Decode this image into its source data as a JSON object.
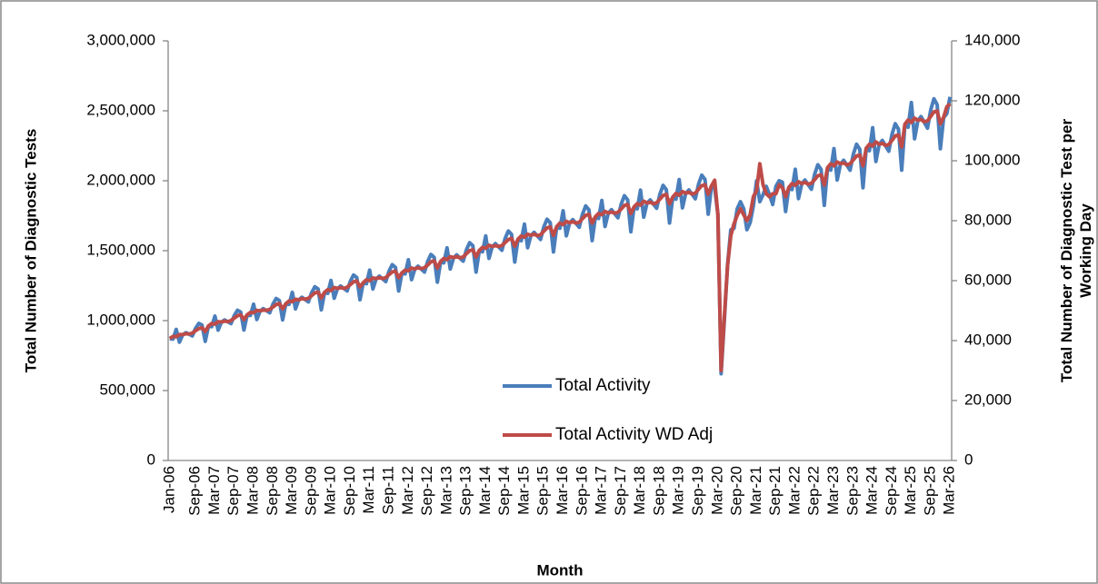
{
  "chart_data": {
    "type": "line",
    "xlabel": "Month",
    "ylabel": "Total Number of Diagnostic Tests",
    "y2label": "Total Number of Diagnostic Test per Working Day",
    "legend": "lower center",
    "ylim": [
      0,
      3000000
    ],
    "yticks": [
      0,
      {
        "value": 500000,
        "label": "500,000"
      },
      {
        "value": 1000000,
        "label": "1,000,000"
      },
      {
        "value": 1500000,
        "label": "1,500,000"
      },
      {
        "value": 2000000,
        "label": "2,000,000"
      },
      {
        "value": 2500000,
        "label": "2,500,000"
      },
      {
        "value": 3000000,
        "label": "3,000,000"
      }
    ],
    "y2lim": [
      0,
      140000
    ],
    "y2ticks": [
      0,
      {
        "value": 20000,
        "label": "20,000"
      },
      {
        "value": 40000,
        "label": "40,000"
      },
      {
        "value": 60000,
        "label": "60,000"
      },
      {
        "value": 80000,
        "label": "80,000"
      },
      {
        "value": 100000,
        "label": "100,000"
      },
      {
        "value": 120000,
        "label": "120,000"
      },
      {
        "value": 140000,
        "label": "140,000"
      }
    ],
    "categories": [
      "Jan-06",
      null,
      null,
      null,
      null,
      null,
      null,
      null,
      "Sep-06",
      null,
      null,
      null,
      null,
      null,
      "Mar-07",
      null,
      null,
      null,
      null,
      null,
      "Sep-07",
      null,
      null,
      null,
      null,
      null,
      "Mar-08",
      null,
      null,
      null,
      null,
      null,
      "Sep-08",
      null,
      null,
      null,
      null,
      null,
      "Mar-09",
      null,
      null,
      null,
      null,
      null,
      "Sep-09",
      null,
      null,
      null,
      null,
      null,
      "Mar-10",
      null,
      null,
      null,
      null,
      null,
      "Sep-10",
      null,
      null,
      null,
      null,
      null,
      "Mar-11",
      null,
      null,
      null,
      null,
      null,
      "Sep-11",
      null,
      null,
      null,
      null,
      null,
      "Mar-12",
      null,
      null,
      null,
      null,
      null,
      "Sep-12",
      null,
      null,
      null,
      null,
      null,
      "Mar-13",
      null,
      null,
      null,
      null,
      null,
      "Sep-13",
      null,
      null,
      null,
      null,
      null,
      "Mar-14",
      null,
      null,
      null,
      null,
      null,
      "Sep-14",
      null,
      null,
      null,
      null,
      null,
      "Mar-15",
      null,
      null,
      null,
      null,
      null,
      "Sep-15",
      null,
      null,
      null,
      null,
      null,
      "Mar-16",
      null,
      null,
      null,
      null,
      null,
      "Sep-16",
      null,
      null,
      null,
      null,
      null,
      "Mar-17",
      null,
      null,
      null,
      null,
      null,
      "Sep-17",
      null,
      null,
      null,
      null,
      null,
      "Mar-18",
      null,
      null,
      null,
      null,
      null,
      "Sep-18",
      null,
      null,
      null,
      null,
      null,
      "Mar-19",
      null,
      null,
      null,
      null,
      null,
      "Sep-19",
      null,
      null,
      null,
      null,
      null,
      "Mar-20",
      null,
      null,
      null,
      null,
      null,
      "Sep-20",
      null,
      null,
      null,
      null,
      null,
      "Mar-21",
      null,
      null,
      null,
      null,
      null,
      "Sep-21",
      null,
      null,
      null,
      null,
      null,
      "Mar-22",
      null,
      null,
      null,
      null,
      null,
      "Sep-22",
      null,
      null,
      null,
      null,
      null,
      "Mar-23",
      null,
      null,
      null,
      null,
      null,
      "Sep-23",
      null,
      null,
      null,
      null,
      null,
      "Mar-24",
      null,
      null,
      null,
      null,
      null,
      "Sep-24",
      null,
      null,
      null,
      null,
      null,
      "Mar-25",
      null,
      null,
      null,
      null,
      null,
      "Sep-25",
      null,
      null,
      null,
      null,
      null,
      "Mar-26"
    ],
    "series": [
      {
        "name": "Total Activity",
        "color": "#4a7ebb",
        "axis": "y",
        "values": [
          870000,
          868000,
          937000,
          846000,
          898000,
          914000,
          903000,
          891000,
          945000,
          980000,
          968000,
          852000,
          960000,
          957000,
          1032000,
          932000,
          988000,
          1005000,
          992000,
          979000,
          1036000,
          1074000,
          1061000,
          933000,
          1040000,
          1037000,
          1117000,
          1008000,
          1068000,
          1086000,
          1071000,
          1056000,
          1118000,
          1158000,
          1143000,
          1005000,
          1120000,
          1116000,
          1202000,
          1084000,
          1148000,
          1167000,
          1150000,
          1134000,
          1200000,
          1242000,
          1226000,
          1077000,
          1200000,
          1195000,
          1287000,
          1160000,
          1228000,
          1247000,
          1230000,
          1212000,
          1281000,
          1326000,
          1308000,
          1149000,
          1270000,
          1264000,
          1361000,
          1226000,
          1298000,
          1318000,
          1299000,
          1279000,
          1353000,
          1400000,
          1380000,
          1212000,
          1340000,
          1334000,
          1435000,
          1293000,
          1368000,
          1389000,
          1368000,
          1347000,
          1424000,
          1473000,
          1452000,
          1275000,
          1420000,
          1413000,
          1520000,
          1369000,
          1448000,
          1470000,
          1447000,
          1425000,
          1506000,
          1557000,
          1535000,
          1347000,
          1500000,
          1492000,
          1605000,
          1445000,
          1528000,
          1550000,
          1527000,
          1503000,
          1587000,
          1641000,
          1617000,
          1419000,
          1580000,
          1571000,
          1690000,
          1521000,
          1608000,
          1631000,
          1606000,
          1580000,
          1669000,
          1725000,
          1700000,
          1491000,
          1670000,
          1660000,
          1785000,
          1606000,
          1698000,
          1722000,
          1695000,
          1667000,
          1761000,
          1820000,
          1792000,
          1572000,
          1740000,
          1730000,
          1859000,
          1673000,
          1768000,
          1793000,
          1764000,
          1735000,
          1832000,
          1893000,
          1864000,
          1635000,
          1810000,
          1799000,
          1933000,
          1739000,
          1838000,
          1863000,
          1833000,
          1803000,
          1903000,
          1967000,
          1936000,
          1698000,
          1880000,
          1868000,
          2008000,
          1806000,
          1908000,
          1934000,
          1903000,
          1871000,
          1975000,
          2040000,
          2009000,
          1761000,
          1960000,
          1950000,
          1760000,
          620000,
          1000000,
          1400000,
          1650000,
          1660000,
          1800000,
          1850000,
          1800000,
          1650000,
          1700000,
          1820000,
          2000000,
          1850000,
          1900000,
          1960000,
          1900000,
          1830000,
          1960000,
          2000000,
          1990000,
          1780000,
          1950000,
          1937000,
          2082000,
          1872000,
          1978000,
          2005000,
          1972000,
          1939000,
          2046000,
          2114000,
          2081000,
          1824000,
          2090000,
          2076000,
          2230000,
          2005000,
          2118000,
          2146000,
          2111000,
          2075000,
          2189000,
          2261000,
          2225000,
          1950000,
          2230000,
          2215000,
          2379000,
          2138000,
          2258000,
          2288000,
          2249000,
          2211000,
          2332000,
          2408000,
          2369000,
          2076000,
          2400000,
          2383000,
          2559000,
          2300000,
          2428000,
          2459000,
          2418000,
          2376000,
          2505000,
          2586000,
          2544000,
          2229000,
          2450000,
          2480000,
          2600000
        ]
      },
      {
        "name": "Total Activity WD Adj",
        "color": "#be4b48",
        "axis": "y2",
        "values": [
          40700,
          41400,
          41300,
          42000,
          42000,
          42300,
          42200,
          42500,
          43300,
          44000,
          44300,
          43000,
          44900,
          45700,
          45500,
          46300,
          46200,
          46500,
          46300,
          46700,
          47500,
          48300,
          48600,
          47000,
          48600,
          49400,
          49300,
          50100,
          49900,
          50200,
          50100,
          50400,
          51200,
          52000,
          52400,
          50600,
          52300,
          53200,
          53000,
          53800,
          53600,
          54000,
          53800,
          54100,
          55000,
          55900,
          56200,
          54200,
          56100,
          57000,
          56700,
          57700,
          57400,
          57700,
          57400,
          57800,
          58700,
          59600,
          59900,
          57900,
          59300,
          60300,
          60000,
          60900,
          60700,
          61000,
          60700,
          61000,
          62000,
          62900,
          63200,
          61000,
          62600,
          63500,
          63300,
          64200,
          63900,
          64300,
          64000,
          64300,
          65200,
          66300,
          66600,
          64200,
          66400,
          67400,
          67000,
          68000,
          67700,
          68000,
          67600,
          67900,
          69000,
          70000,
          70300,
          67900,
          70100,
          71100,
          70800,
          71800,
          71400,
          71700,
          71400,
          71700,
          72700,
          73700,
          74100,
          71500,
          73800,
          74900,
          74500,
          75500,
          75100,
          75500,
          75000,
          75300,
          76500,
          77600,
          77900,
          75100,
          78000,
          79200,
          78700,
          79800,
          79300,
          79700,
          79200,
          79500,
          80700,
          81800,
          82100,
          79200,
          81300,
          82400,
          82000,
          83100,
          82600,
          82900,
          82500,
          82800,
          83900,
          85100,
          85400,
          82400,
          84600,
          85700,
          85200,
          86500,
          85900,
          86200,
          85600,
          86000,
          87200,
          88400,
          88800,
          85600,
          87900,
          89100,
          88500,
          89700,
          89200,
          89500,
          88900,
          89200,
          90500,
          91700,
          92000,
          88800,
          91600,
          93500,
          82000,
          30000,
          48000,
          65000,
          75000,
          79000,
          81800,
          84000,
          82000,
          80000,
          82000,
          88000,
          90000,
          99000,
          92000,
          89000,
          88000,
          89000,
          89000,
          92000,
          91000,
          88000,
          91100,
          92400,
          91800,
          93000,
          92400,
          92800,
          92200,
          92500,
          93700,
          95000,
          95300,
          91900,
          97700,
          99000,
          98300,
          99600,
          99000,
          99300,
          98600,
          99000,
          100300,
          101600,
          101900,
          98300,
          104200,
          105500,
          104900,
          106300,
          105500,
          105800,
          105100,
          105400,
          106800,
          108300,
          108600,
          104600,
          112200,
          113600,
          112800,
          114200,
          113500,
          113800,
          113000,
          113300,
          114800,
          116300,
          116600,
          112300,
          114500,
          118000,
          119000
        ]
      }
    ]
  }
}
